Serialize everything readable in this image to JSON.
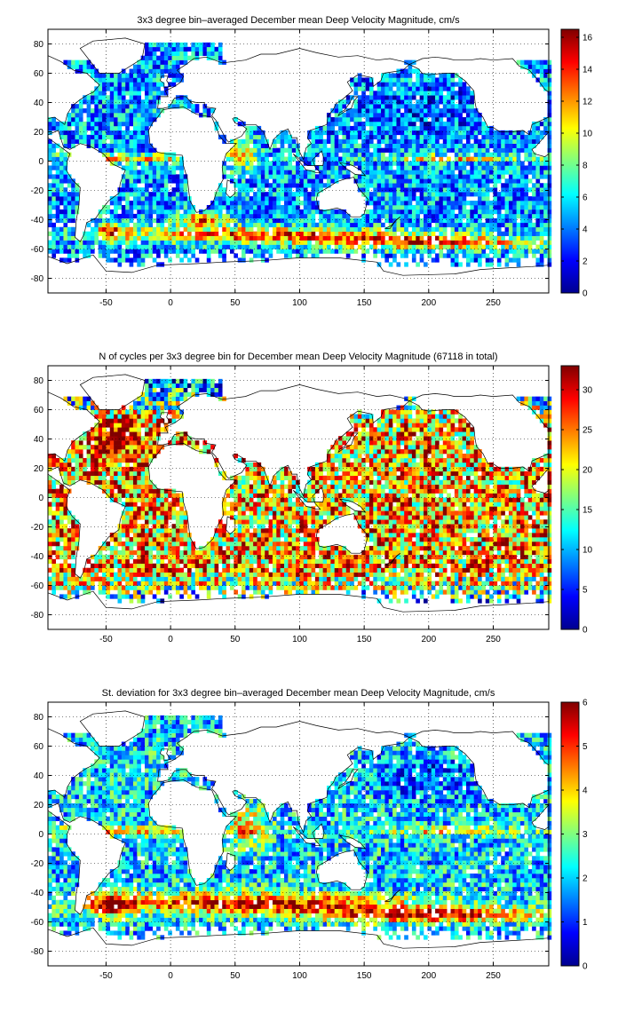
{
  "panels": [
    {
      "title": "3x3 degree bin–averaged December mean Deep Velocity Magnitude, cm/s",
      "xticks": [
        "-50",
        "0",
        "50",
        "100",
        "150",
        "200",
        "250"
      ],
      "yticks": [
        "80",
        "60",
        "40",
        "20",
        "0",
        "-20",
        "-40",
        "-60",
        "-80"
      ],
      "colorbar_ticks": [
        "16",
        "14",
        "12",
        "10",
        "8",
        "6",
        "4",
        "2",
        "0"
      ]
    },
    {
      "title": "N of cycles per 3x3 degree bin for December mean Deep Velocity Magnitude (67118 in total)",
      "xticks": [
        "-50",
        "0",
        "50",
        "100",
        "150",
        "200",
        "250"
      ],
      "yticks": [
        "80",
        "60",
        "40",
        "20",
        "0",
        "-20",
        "-40",
        "-60",
        "-80"
      ],
      "colorbar_ticks": [
        "30",
        "25",
        "20",
        "15",
        "10",
        "5",
        "0"
      ]
    },
    {
      "title": "St. deviation for 3x3 degree bin–averaged December mean Deep Velocity Magnitude, cm/s",
      "xticks": [
        "-50",
        "0",
        "50",
        "100",
        "150",
        "200",
        "250"
      ],
      "yticks": [
        "80",
        "60",
        "40",
        "20",
        "0",
        "-20",
        "-40",
        "-60",
        "-80"
      ],
      "colorbar_ticks": [
        "6",
        "5",
        "4",
        "3",
        "2",
        "1",
        "0"
      ]
    }
  ],
  "chart_data": [
    {
      "type": "heatmap",
      "title": "3x3 degree bin–averaged December mean Deep Velocity Magnitude, cm/s",
      "xlim": [
        -95,
        293
      ],
      "ylim": [
        -90,
        90
      ],
      "xticks": [
        -50,
        0,
        50,
        100,
        150,
        200,
        250
      ],
      "yticks": [
        80,
        60,
        40,
        20,
        0,
        -20,
        -40,
        -60,
        -80
      ],
      "grid": true,
      "bin_size_deg": 3,
      "colormap": "jet",
      "clim": [
        0,
        16.5
      ],
      "colorbar_ticks": [
        0,
        2,
        4,
        6,
        8,
        10,
        12,
        14,
        16
      ],
      "field_model": "velocity"
    },
    {
      "type": "heatmap",
      "title": "N of cycles per 3x3 degree bin for December mean Deep Velocity Magnitude (67118 in total)",
      "xlim": [
        -95,
        293
      ],
      "ylim": [
        -90,
        90
      ],
      "xticks": [
        -50,
        0,
        50,
        100,
        150,
        200,
        250
      ],
      "yticks": [
        80,
        60,
        40,
        20,
        0,
        -20,
        -40,
        -60,
        -80
      ],
      "grid": true,
      "bin_size_deg": 3,
      "colormap": "jet",
      "clim": [
        0,
        33
      ],
      "colorbar_ticks": [
        0,
        5,
        10,
        15,
        20,
        25,
        30
      ],
      "total_cycles": 67118,
      "field_model": "count"
    },
    {
      "type": "heatmap",
      "title": "St. deviation for 3x3 degree bin–averaged December mean Deep Velocity Magnitude, cm/s",
      "xlim": [
        -95,
        293
      ],
      "ylim": [
        -90,
        90
      ],
      "xticks": [
        -50,
        0,
        50,
        100,
        150,
        200,
        250
      ],
      "yticks": [
        80,
        60,
        40,
        20,
        0,
        -20,
        -40,
        -60,
        -80
      ],
      "grid": true,
      "bin_size_deg": 3,
      "colormap": "jet",
      "clim": [
        0,
        6
      ],
      "colorbar_ticks": [
        0,
        1,
        2,
        3,
        4,
        5,
        6
      ],
      "field_model": "stddev"
    }
  ]
}
